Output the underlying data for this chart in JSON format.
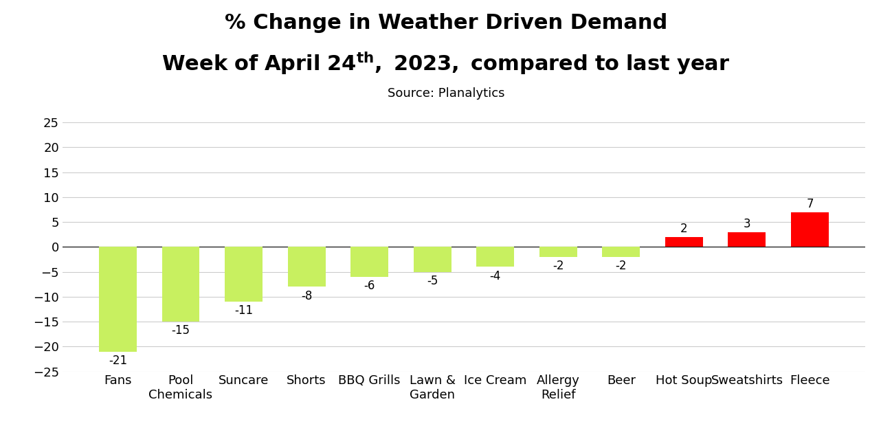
{
  "categories": [
    "Fans",
    "Pool\nChemicals",
    "Suncare",
    "Shorts",
    "BBQ Grills",
    "Lawn &\nGarden",
    "Ice Cream",
    "Allergy\nRelief",
    "Beer",
    "Hot Soup",
    "Sweatshirts",
    "Fleece"
  ],
  "values": [
    -21,
    -15,
    -11,
    -8,
    -6,
    -5,
    -4,
    -2,
    -2,
    2,
    3,
    7
  ],
  "bar_colors_negative": "#c8f060",
  "bar_colors_positive": "#ff0000",
  "title_line1": "% Change in Weather Driven Demand",
  "title_line2_pre": "Week of April 24",
  "title_line2_super": "th",
  "title_line2_post": ", 2023, compared to last year",
  "subtitle": "Source: Planalytics",
  "ylim": [
    -25,
    25
  ],
  "yticks": [
    -25,
    -20,
    -15,
    -10,
    -5,
    0,
    5,
    10,
    15,
    20,
    25
  ],
  "title_fontsize": 22,
  "subtitle_fontsize": 13,
  "label_fontsize": 12,
  "tick_fontsize": 13,
  "background_color": "#ffffff",
  "grid_color": "#cccccc"
}
